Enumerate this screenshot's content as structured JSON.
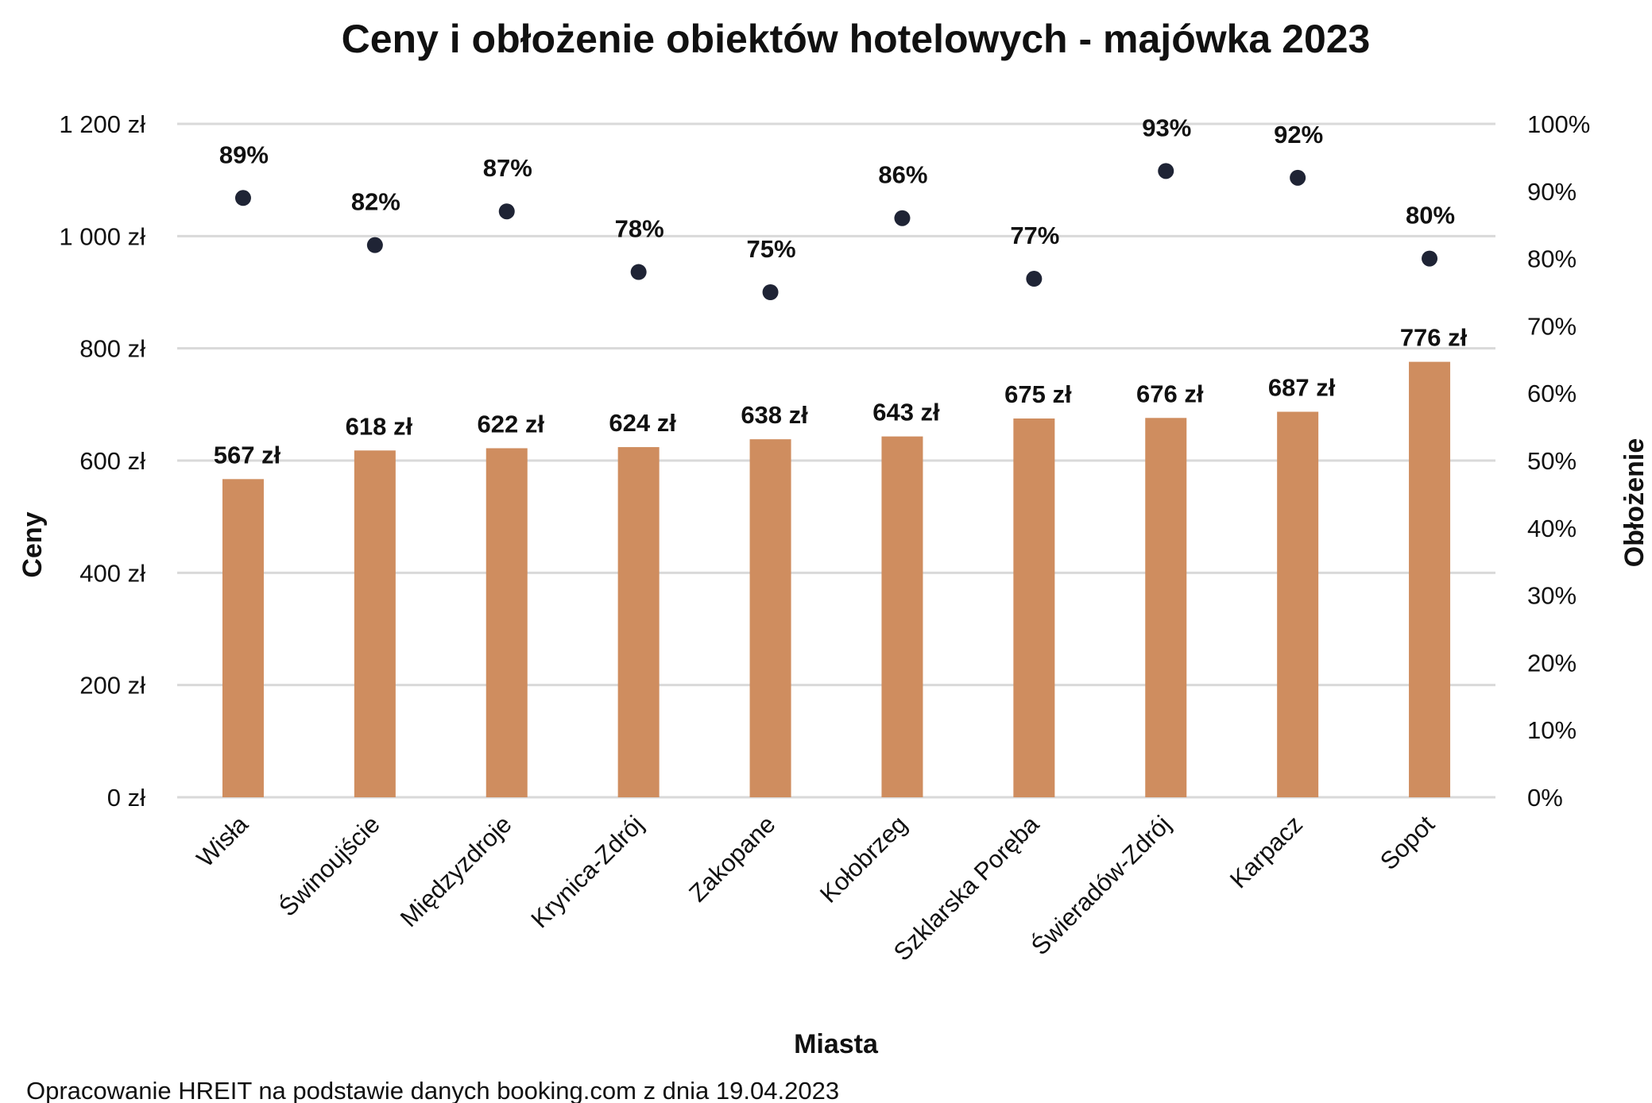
{
  "chart_data": {
    "type": "bar+scatter",
    "title": "Ceny i obłożenie obiektów hotelowych - majówka 2023",
    "xlabel": "Miasta",
    "ylabel": "Ceny",
    "y2label": "Obłożenie",
    "categories": [
      "Wisła",
      "Świnoujście",
      "Międzyzdroje",
      "Krynica-Zdrój",
      "Zakopane",
      "Kołobrzeg",
      "Szklarska Poręba",
      "Świeradów-Zdrój",
      "Karpacz",
      "Sopot"
    ],
    "series": [
      {
        "type": "bar",
        "axis": "left",
        "values": [
          567,
          618,
          622,
          624,
          638,
          643,
          675,
          676,
          687,
          776
        ],
        "labels": [
          "567 zł",
          "618 zł",
          "622 zł",
          "624 zł",
          "638 zł",
          "643 zł",
          "675 zł",
          "676 zł",
          "687 zł",
          "776 zł"
        ],
        "color": "#cf8d5f"
      },
      {
        "type": "scatter",
        "axis": "right",
        "values": [
          89,
          82,
          87,
          78,
          75,
          86,
          77,
          93,
          92,
          80
        ],
        "labels": [
          "89%",
          "82%",
          "87%",
          "78%",
          "75%",
          "86%",
          "77%",
          "93%",
          "92%",
          "80%"
        ],
        "color": "#1f2435"
      }
    ],
    "ylim": [
      0,
      1200
    ],
    "y_ticks": [
      "0 zł",
      "200 zł",
      "400 zł",
      "600 zł",
      "800 zł",
      "1 000 zł",
      "1 200 zł"
    ],
    "y2lim": [
      0,
      100
    ],
    "y2_ticks": [
      "0%",
      "10%",
      "20%",
      "30%",
      "40%",
      "50%",
      "60%",
      "70%",
      "80%",
      "90%",
      "100%"
    ],
    "grid": true,
    "legend": "none",
    "footnote": "Opracowanie HREIT na podstawie danych booking.com z dnia 19.04.2023"
  }
}
